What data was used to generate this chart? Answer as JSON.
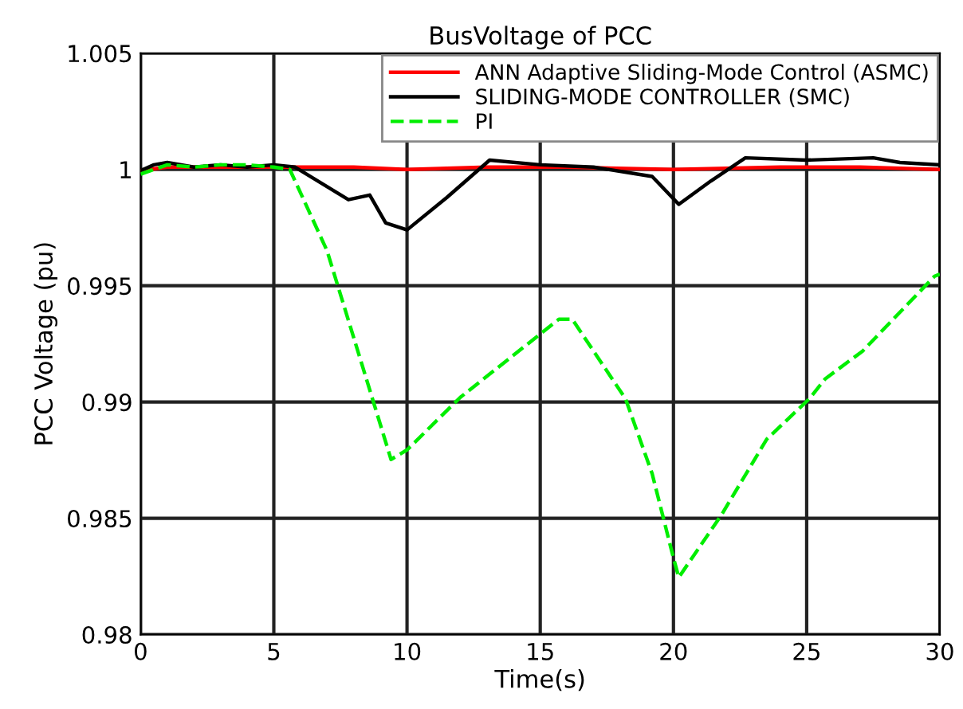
{
  "chart_data": {
    "type": "line",
    "title": "BusVoltage of PCC",
    "xlabel": "Time(s)",
    "ylabel": "PCC Voltage (pu)",
    "xlim": [
      0,
      30
    ],
    "ylim": [
      0.98,
      1.005
    ],
    "xticks": [
      0,
      5,
      10,
      15,
      20,
      25,
      30
    ],
    "yticks": [
      0.98,
      0.985,
      0.99,
      0.995,
      1,
      1.005
    ],
    "grid": true,
    "legend": "top right",
    "series": [
      {
        "name": "ANN Adaptive Sliding-Mode Control (ASMC)",
        "color": "#ff0000",
        "line_style": "solid",
        "x": [
          0,
          1,
          3,
          5,
          8,
          10,
          13,
          16,
          20,
          24,
          27,
          30
        ],
        "values": [
          0.99995,
          1.0001,
          1.0001,
          1.0001,
          1.0001,
          1.0,
          1.0001,
          1.0001,
          1.0,
          1.0001,
          1.0001,
          1.0
        ]
      },
      {
        "name": "SLIDING-MODE CONTROLLER (SMC)",
        "color": "#000000",
        "line_style": "solid",
        "x": [
          0,
          0.5,
          1,
          2,
          3,
          4,
          5,
          5.8,
          7.8,
          8.6,
          9.2,
          10.0,
          11.5,
          13.1,
          15,
          17,
          19.2,
          20.2,
          21.4,
          22.7,
          25,
          27.5,
          28.5,
          30
        ],
        "values": [
          0.99995,
          1.0002,
          1.0003,
          1.0001,
          1.0002,
          1.0001,
          1.0002,
          1.0001,
          0.9987,
          0.9989,
          0.9977,
          0.9974,
          0.9988,
          1.0004,
          1.0002,
          1.0001,
          0.9997,
          0.9985,
          0.9995,
          1.0005,
          1.0004,
          1.0005,
          1.0003,
          1.0002
        ]
      },
      {
        "name": "PI",
        "color": "#00ee00",
        "line_style": "dashed",
        "x": [
          0,
          1,
          2,
          3,
          4,
          5,
          5.6,
          7.0,
          9.4,
          10.0,
          12,
          15.7,
          16.2,
          18.2,
          19.2,
          20.0,
          20.2,
          21.8,
          23.5,
          25.1,
          25.7,
          27.1,
          29.8,
          30
        ],
        "values": [
          0.9998,
          1.0002,
          1.0001,
          1.0002,
          1.0002,
          1.0001,
          1.0,
          0.9965,
          0.98753,
          0.98794,
          0.9902,
          0.99356,
          0.99356,
          0.99014,
          0.98692,
          0.98329,
          0.98246,
          0.98514,
          0.9884,
          0.99014,
          0.991,
          0.99219,
          0.99541,
          0.9955
        ]
      }
    ]
  }
}
